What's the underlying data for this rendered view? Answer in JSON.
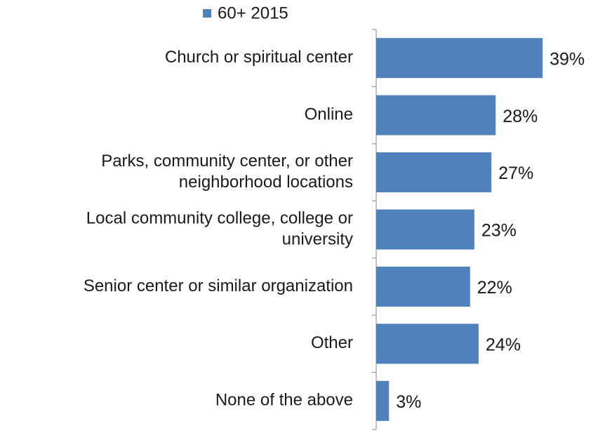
{
  "chart_data": {
    "type": "bar",
    "orientation": "horizontal",
    "categories": [
      "Church or spiritual center",
      "Online",
      [
        "Parks, community center, or other",
        "neighborhood locations"
      ],
      [
        "Local community college, college or",
        "university"
      ],
      "Senior center or similar organization",
      "Other",
      "None of the above"
    ],
    "series": [
      {
        "name": "60+ 2015",
        "color": "#4f81bd",
        "values": [
          39,
          28,
          27,
          23,
          22,
          24,
          3
        ],
        "value_labels": [
          "39%",
          "28%",
          "27%",
          "23%",
          "22%",
          "24%",
          "3%"
        ]
      }
    ],
    "xlim": [
      0,
      50
    ],
    "legend": "top"
  }
}
